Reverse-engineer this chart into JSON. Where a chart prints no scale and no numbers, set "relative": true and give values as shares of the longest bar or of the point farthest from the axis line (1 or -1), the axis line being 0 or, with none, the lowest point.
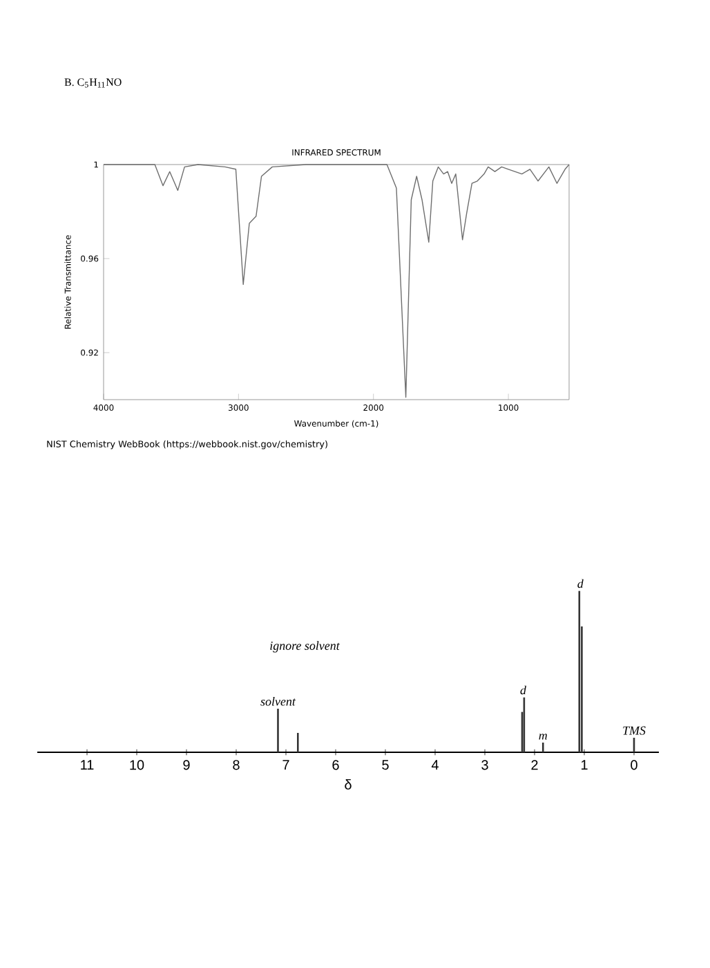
{
  "chart_data": [
    {
      "type": "line",
      "title": "INFRARED SPECTRUM",
      "subtitle": "B. C$_{5}$H$_{11}$NO",
      "xlabel": "Wavenumber (cm-1)",
      "ylabel": "Relative Transmittance",
      "x": [
        4000,
        3620,
        3560,
        3510,
        3450,
        3400,
        3300,
        3100,
        3020,
        2965,
        2920,
        2870,
        2830,
        2750,
        2500,
        1900,
        1830,
        1760,
        1720,
        1680,
        1640,
        1590,
        1560,
        1520,
        1480,
        1450,
        1420,
        1390,
        1340,
        1310,
        1270,
        1230,
        1180,
        1150,
        1100,
        1050,
        1000,
        900,
        840,
        780,
        700,
        640,
        580,
        550
      ],
      "series": [
        {
          "color": "#6e6e6e",
          "values": [
            1.0,
            1.0,
            0.991,
            0.997,
            0.989,
            0.999,
            1.0,
            0.999,
            0.998,
            0.949,
            0.975,
            0.978,
            0.995,
            0.999,
            1.0,
            1.0,
            0.99,
            0.901,
            0.985,
            0.995,
            0.985,
            0.967,
            0.993,
            0.999,
            0.996,
            0.997,
            0.992,
            0.996,
            0.968,
            0.979,
            0.992,
            0.993,
            0.996,
            0.999,
            0.997,
            0.999,
            0.998,
            0.996,
            0.998,
            0.993,
            0.999,
            0.992,
            0.998,
            1.0
          ]
        }
      ],
      "xlim": [
        4000,
        550
      ],
      "ylim": [
        0.9,
        1.0
      ],
      "xticks": [
        4000,
        3000,
        2000,
        1000
      ],
      "yticks": [
        0.92,
        0.96,
        1
      ],
      "annotations": [
        "NIST Chemistry WebBook (https://webbook.nist.gov/chemistry)"
      ]
    },
    {
      "type": "bar",
      "relative": true,
      "xlabel": "δ",
      "x": [
        7.16,
        6.76,
        2.25,
        2.21,
        1.83,
        1.1,
        1.05,
        0
      ],
      "series": [
        {
          "color": "#333333",
          "values": [
            0.27,
            0.12,
            0.25,
            0.34,
            0.06,
            1,
            0.78,
            0.09
          ]
        }
      ],
      "xlim": [
        12,
        -0.5
      ],
      "xticks": [
        11,
        10,
        9,
        8,
        7,
        6,
        5,
        4,
        3,
        2,
        1,
        0
      ],
      "annotations": [
        {
          "text": "solvent",
          "x": 7.16,
          "y": 0.27
        },
        "ignore solvent",
        {
          "text": "d",
          "x": 2.23,
          "y": 0.34
        },
        {
          "text": "m",
          "x": 1.83,
          "y": 0.06
        },
        {
          "text": "d",
          "x": 1.08,
          "y": 1
        },
        {
          "text": "TMS",
          "x": 0,
          "y": 0.09
        }
      ]
    }
  ]
}
